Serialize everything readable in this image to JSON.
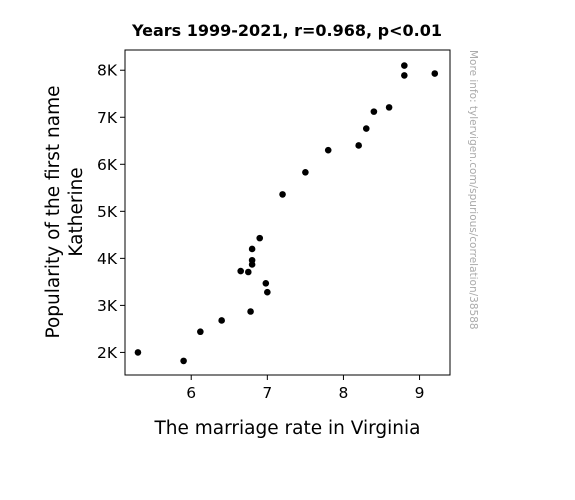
{
  "chart_data": {
    "type": "scatter",
    "title": "Years 1999-2021, r=0.968, p<0.01",
    "xlabel": "The marriage rate in Virginia",
    "ylabel_lines": [
      "Popularity of the first name",
      "Katherine"
    ],
    "side_note": "More info: tylervigen.com/spurious/correlation/38588",
    "xlim": [
      5.13,
      9.4
    ],
    "ylim": [
      1520,
      8430
    ],
    "x_ticks": [
      {
        "value": 6,
        "label": "6"
      },
      {
        "value": 7,
        "label": "7"
      },
      {
        "value": 8,
        "label": "8"
      },
      {
        "value": 9,
        "label": "9"
      }
    ],
    "y_ticks": [
      {
        "value": 2000,
        "label": "2K"
      },
      {
        "value": 3000,
        "label": "3K"
      },
      {
        "value": 4000,
        "label": "4K"
      },
      {
        "value": 5000,
        "label": "5K"
      },
      {
        "value": 6000,
        "label": "6K"
      },
      {
        "value": 7000,
        "label": "7K"
      },
      {
        "value": 8000,
        "label": "8K"
      }
    ],
    "point_color": "#000000",
    "points": [
      {
        "x": 5.3,
        "y": 2000
      },
      {
        "x": 5.9,
        "y": 1820
      },
      {
        "x": 6.12,
        "y": 2440
      },
      {
        "x": 6.4,
        "y": 2680
      },
      {
        "x": 6.65,
        "y": 3730
      },
      {
        "x": 6.75,
        "y": 3710
      },
      {
        "x": 6.78,
        "y": 2870
      },
      {
        "x": 6.8,
        "y": 3870
      },
      {
        "x": 6.8,
        "y": 3960
      },
      {
        "x": 6.8,
        "y": 4200
      },
      {
        "x": 6.9,
        "y": 4430
      },
      {
        "x": 6.98,
        "y": 3470
      },
      {
        "x": 7.0,
        "y": 3280
      },
      {
        "x": 7.2,
        "y": 5360
      },
      {
        "x": 7.5,
        "y": 5830
      },
      {
        "x": 7.8,
        "y": 6300
      },
      {
        "x": 8.2,
        "y": 6400
      },
      {
        "x": 8.3,
        "y": 6760
      },
      {
        "x": 8.4,
        "y": 7120
      },
      {
        "x": 8.6,
        "y": 7210
      },
      {
        "x": 8.8,
        "y": 7890
      },
      {
        "x": 8.8,
        "y": 8100
      },
      {
        "x": 9.2,
        "y": 7930
      }
    ]
  }
}
